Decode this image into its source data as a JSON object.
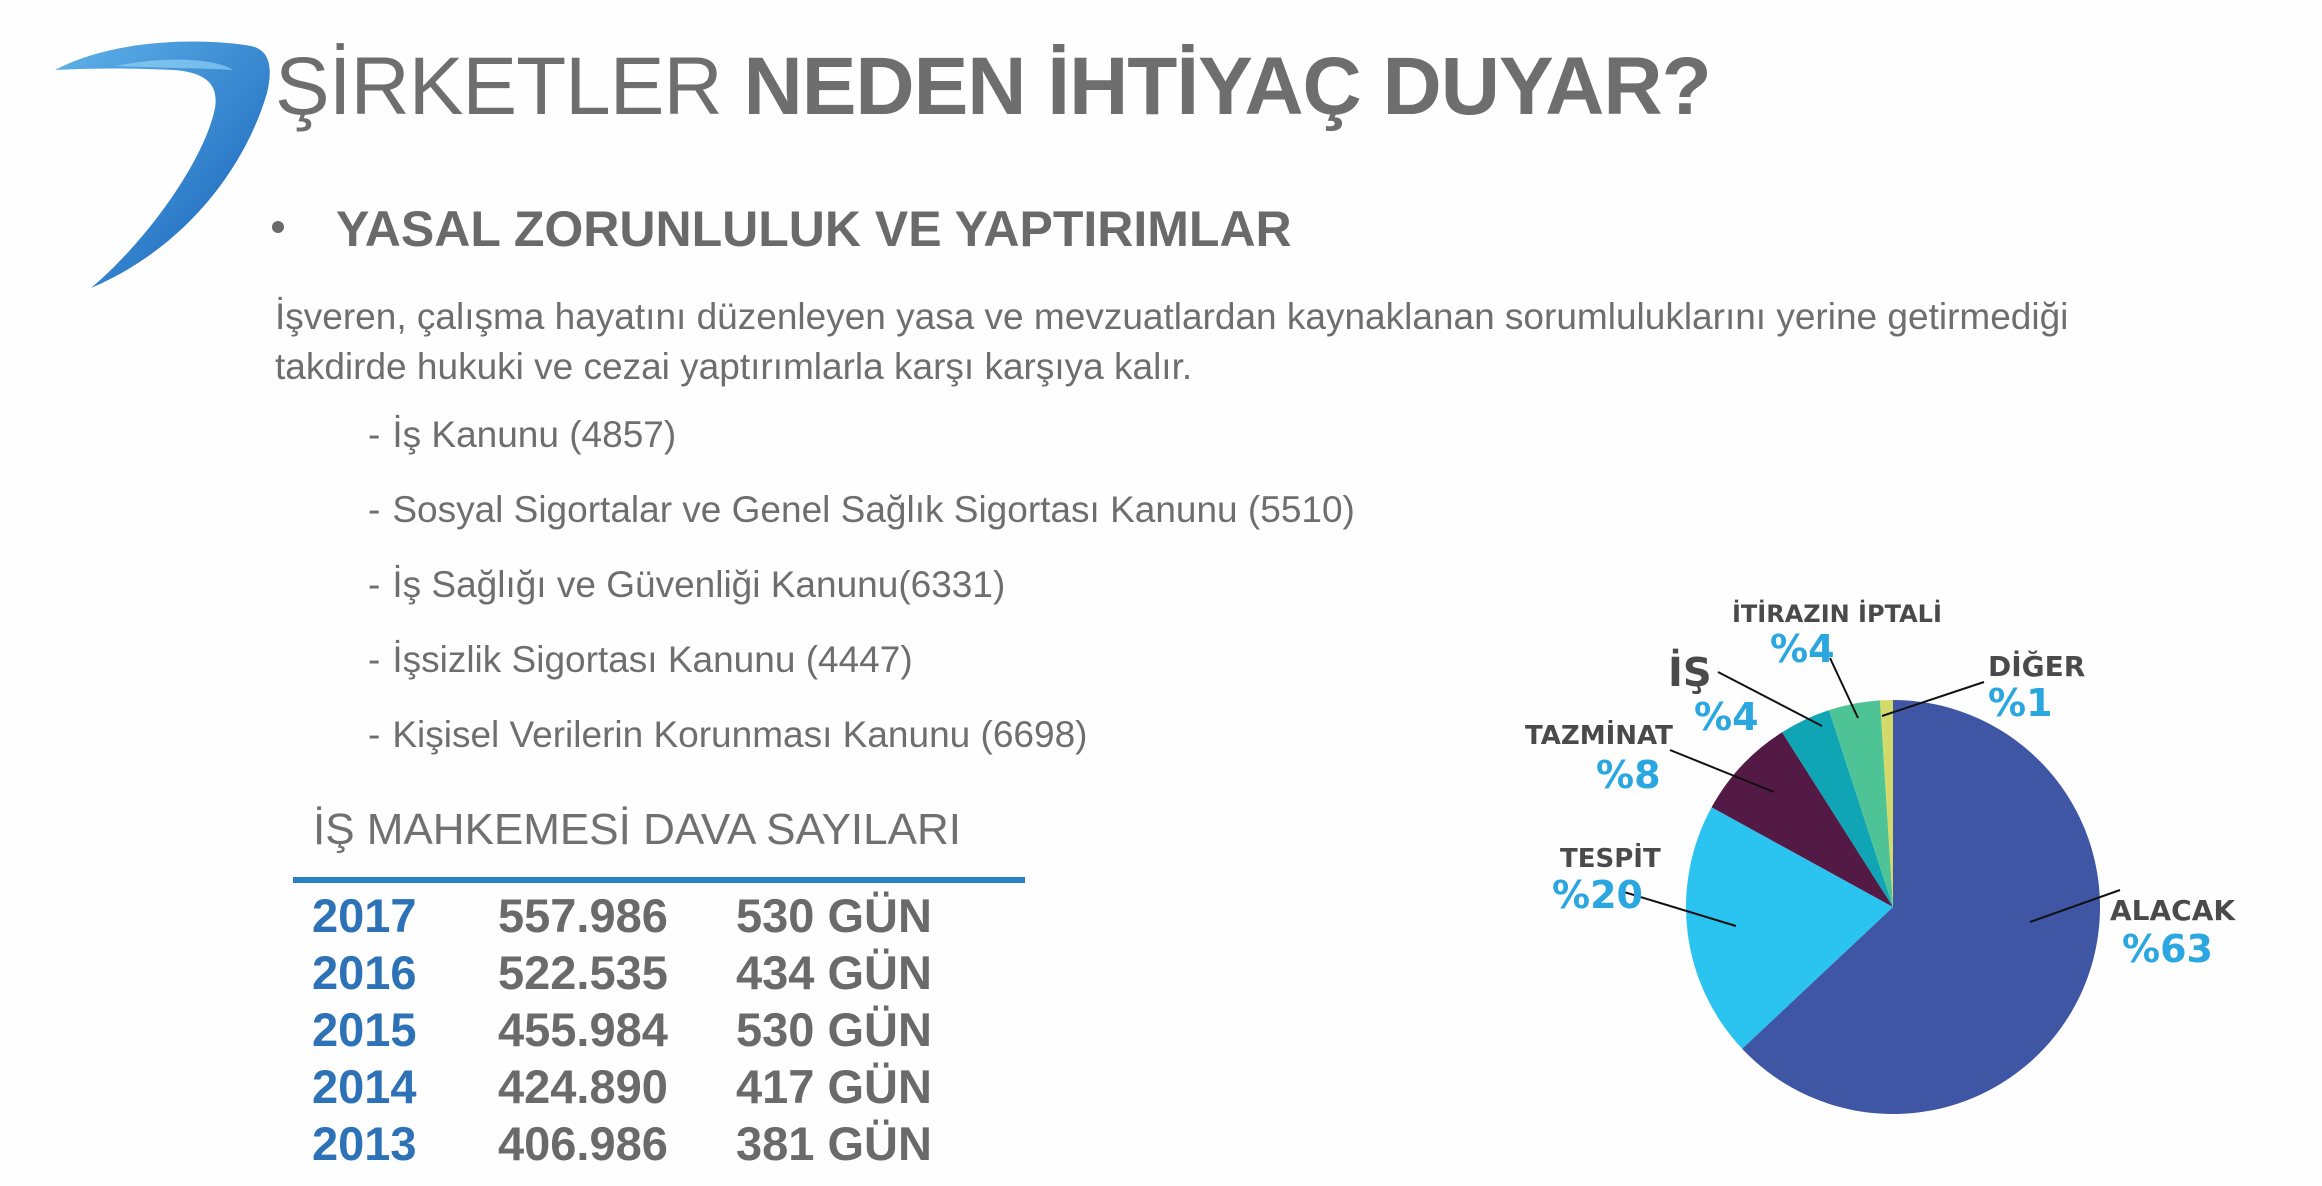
{
  "header": {
    "title_light": "ŞİRKETLER",
    "title_bold": "NEDEN İHTİYAÇ DUYAR?"
  },
  "section": {
    "bullet": "YASAL ZORUNLULUK VE YAPTIRIMLAR",
    "paragraph_line1": "İşveren, çalışma hayatını düzenleyen yasa ve mevzuatlardan kaynaklanan sorumluluklarını yerine getirmediği",
    "paragraph_line2": "takdirde hukuki ve cezai yaptırımlarla karşı karşıya kalır.",
    "laws": [
      "İş Kanunu (4857)",
      "Sosyal Sigortalar ve Genel Sağlık Sigortası Kanunu (5510)",
      "İş Sağlığı ve Güvenliği Kanunu(6331)",
      "İşsizlik Sigortası Kanunu (4447)",
      "Kişisel Verilerin Korunması Kanunu (6698)"
    ]
  },
  "table": {
    "title": "İŞ MAHKEMESİ DAVA SAYILARI",
    "rows": [
      {
        "year": "2017",
        "count": "557.986",
        "duration": "530 GÜN"
      },
      {
        "year": "2016",
        "count": "522.535",
        "duration": "434 GÜN"
      },
      {
        "year": "2015",
        "count": "455.984",
        "duration": "530 GÜN"
      },
      {
        "year": "2014",
        "count": "424.890",
        "duration": "417 GÜN"
      },
      {
        "year": "2013",
        "count": "406.986",
        "duration": "381 GÜN"
      }
    ]
  },
  "colors": {
    "accent_blue": "#2d71b6",
    "pct_blue": "#2aa6e0"
  },
  "chart_data": {
    "type": "pie",
    "slices": [
      {
        "name": "ALACAK",
        "value": 63,
        "pct_label": "%63",
        "color": "#3f56a4"
      },
      {
        "name": "TESPİT",
        "value": 20,
        "pct_label": "%20",
        "color": "#2bc4f0"
      },
      {
        "name": "TAZMİNAT",
        "value": 8,
        "pct_label": "%8",
        "color": "#521a45"
      },
      {
        "name": "İŞ",
        "value": 4,
        "pct_label": "%4",
        "color": "#10a5b4"
      },
      {
        "name": "İTİRAZIN İPTALİ",
        "value": 4,
        "pct_label": "%4",
        "color": "#4ec395"
      },
      {
        "name": "DİĞER",
        "value": 1,
        "pct_label": "%1",
        "color": "#d4da6a"
      }
    ]
  }
}
